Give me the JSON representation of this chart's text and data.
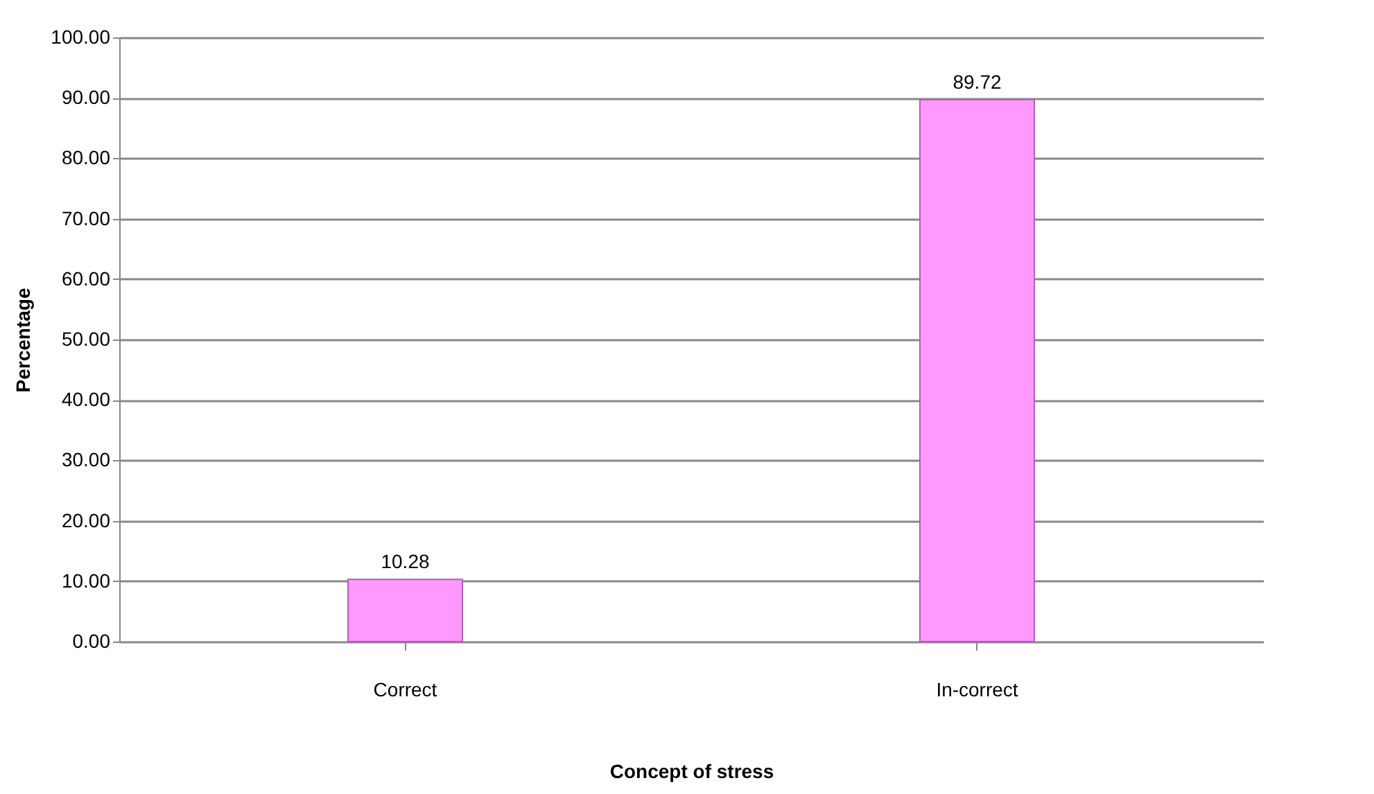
{
  "chart_data": {
    "type": "bar",
    "xlabel": "Concept of stress",
    "ylabel": "Percentage",
    "categories": [
      "Correct",
      "In-correct"
    ],
    "values": [
      10.28,
      89.72
    ],
    "color": "#ff99ff",
    "ylim": [
      0,
      100
    ],
    "yticks": [
      {
        "value": 0,
        "label": "0.00"
      },
      {
        "value": 10,
        "label": "10.00"
      },
      {
        "value": 20,
        "label": "20.00"
      },
      {
        "value": 30,
        "label": "30.00"
      },
      {
        "value": 40,
        "label": "40.00"
      },
      {
        "value": 50,
        "label": "50.00"
      },
      {
        "value": 60,
        "label": "60.00"
      },
      {
        "value": 70,
        "label": "70.00"
      },
      {
        "value": 80,
        "label": "80.00"
      },
      {
        "value": 90,
        "label": "90.00"
      },
      {
        "value": 100,
        "label": "100.00"
      }
    ],
    "grid": true,
    "data_labels": true
  }
}
